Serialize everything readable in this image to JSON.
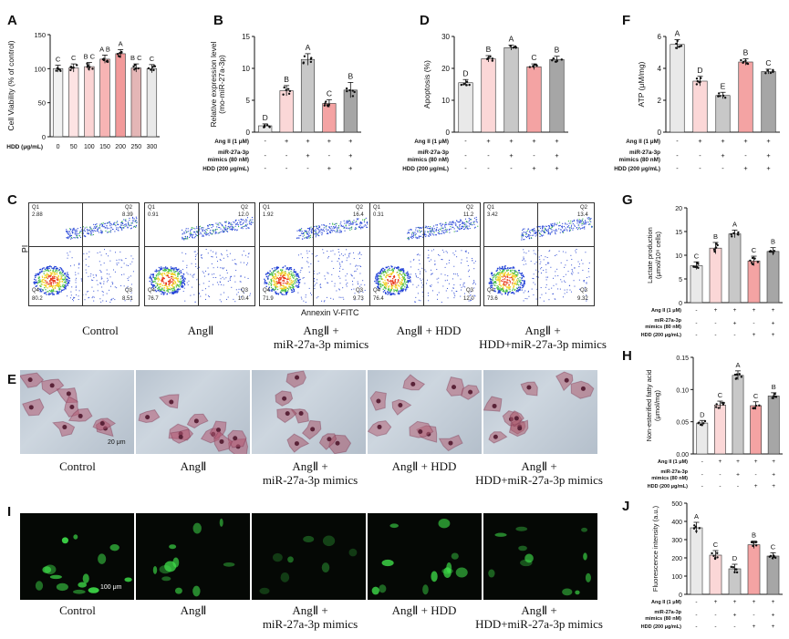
{
  "panels": {
    "A": {
      "letter": "A",
      "chart_data": {
        "type": "bar",
        "ylabel": "Cell Viability (% of control)",
        "xlabel_title": "HDD (μg/mL)",
        "categories": [
          "0",
          "50",
          "100",
          "150",
          "200",
          "250",
          "300"
        ],
        "values": [
          100,
          101,
          103,
          114,
          122,
          101,
          100
        ],
        "errors": [
          5,
          6,
          6,
          6,
          6,
          6,
          6
        ],
        "letters": [
          "C",
          "C",
          "B C",
          "A B",
          "A",
          "B C",
          "C"
        ],
        "colors": [
          "#f2f2f2",
          "#fde3e3",
          "#fbd4d4",
          "#f7b4b4",
          "#f29a9a",
          "#e4b6b6",
          "#e9e9e9"
        ],
        "ylim": [
          0,
          150
        ],
        "yticks": [
          "0",
          "50",
          "100",
          "150"
        ]
      }
    },
    "B": {
      "letter": "B",
      "chart_data": {
        "type": "bar",
        "ylabel": "Relative expression level (mo-miR-27a-3p)",
        "ylabel_line1": "Relative expression level",
        "ylabel_line2": "(mo-miR-27a-3p)",
        "values": [
          1.0,
          6.5,
          11.4,
          4.5,
          6.6
        ],
        "errors": [
          0.3,
          0.8,
          0.9,
          0.6,
          1.2
        ],
        "letters": [
          "D",
          "B",
          "A",
          "C",
          "B"
        ],
        "ylim": [
          0,
          15
        ],
        "yticks": [
          "0",
          "5",
          "10",
          "15"
        ]
      }
    },
    "D": {
      "letter": "D",
      "chart_data": {
        "type": "bar",
        "ylabel": "Apoptosis (%)",
        "values": [
          15.5,
          23,
          26.5,
          20.5,
          22.8
        ],
        "errors": [
          1,
          1,
          0.8,
          0.9,
          1
        ],
        "letters": [
          "D",
          "B",
          "A",
          "C",
          "B"
        ],
        "ylim": [
          0,
          30
        ],
        "yticks": [
          "0",
          "10",
          "20",
          "30"
        ]
      }
    },
    "F": {
      "letter": "F",
      "chart_data": {
        "type": "bar",
        "ylabel": "ATP (μM/mg)",
        "values": [
          5.5,
          3.2,
          2.3,
          4.4,
          3.8
        ],
        "errors": [
          0.3,
          0.3,
          0.2,
          0.2,
          0.15
        ],
        "letters": [
          "A",
          "D",
          "E",
          "B",
          "C"
        ],
        "ylim": [
          0,
          6
        ],
        "yticks": [
          "0",
          "2",
          "4",
          "6"
        ]
      }
    },
    "G": {
      "letter": "G",
      "chart_data": {
        "type": "bar",
        "ylabel": "Lactate production (μmol/10⁶ cells)",
        "ylabel_line1": "Lactate production",
        "ylabel_line2": "(μmol/10⁶ cells)",
        "values": [
          7.8,
          11.5,
          14.5,
          8.8,
          10.8
        ],
        "errors": [
          0.8,
          1.2,
          0.8,
          1,
          0.8
        ],
        "letters": [
          "C",
          "B",
          "A",
          "C",
          "B"
        ],
        "ylim": [
          0,
          20
        ],
        "yticks": [
          "0",
          "5",
          "10",
          "15",
          "20"
        ]
      }
    },
    "H": {
      "letter": "H",
      "chart_data": {
        "type": "bar",
        "ylabel": "Non-esterified fatty acid (μmol/mg)",
        "ylabel_line1": "Non-esterified fatty acid",
        "ylabel_line2": "(μmol/mg)",
        "values": [
          0.048,
          0.076,
          0.122,
          0.075,
          0.09
        ],
        "errors": [
          0.004,
          0.006,
          0.007,
          0.006,
          0.005
        ],
        "letters": [
          "D",
          "C",
          "A",
          "C",
          "B"
        ],
        "ylim": [
          0,
          0.15
        ],
        "yticks": [
          "0.00",
          "0.05",
          "0.10",
          "0.15"
        ]
      }
    },
    "J": {
      "letter": "J",
      "chart_data": {
        "type": "bar",
        "ylabel": "Fluorescence intensity (a.u.)",
        "values": [
          365,
          215,
          140,
          272,
          210
        ],
        "errors": [
          30,
          25,
          25,
          20,
          18
        ],
        "letters": [
          "A",
          "C",
          "D",
          "B",
          "C"
        ],
        "ylim": [
          0,
          500
        ],
        "yticks": [
          "0",
          "100",
          "200",
          "300",
          "400",
          "500"
        ]
      }
    },
    "C": {
      "letter": "C",
      "ylabel": "PI",
      "xlabel": "Annexin V-FITC",
      "plots": [
        {
          "q1": "Q1",
          "q1v": "2.88",
          "q2": "Q2",
          "q2v": "8.39",
          "q3": "Q3",
          "q3v": "8.51",
          "q4": "Q4",
          "q4v": "80.2"
        },
        {
          "q1": "Q1",
          "q1v": "0.91",
          "q2": "Q2",
          "q2v": "12.0",
          "q3": "Q3",
          "q3v": "10.4",
          "q4": "Q4",
          "q4v": "76.7"
        },
        {
          "q1": "Q1",
          "q1v": "1.92",
          "q2": "Q2",
          "q2v": "16.4",
          "q3": "Q3",
          "q3v": "9.73",
          "q4": "Q4",
          "q4v": "71.9"
        },
        {
          "q1": "Q1",
          "q1v": "0.31",
          "q2": "Q2",
          "q2v": "11.2",
          "q3": "Q3",
          "q3v": "12.0",
          "q4": "Q4",
          "q4v": "76.4"
        },
        {
          "q1": "Q1",
          "q1v": "3.42",
          "q2": "Q2",
          "q2v": "13.4",
          "q3": "Q3",
          "q3v": "9.32",
          "q4": "Q4",
          "q4v": "73.6"
        }
      ]
    },
    "E": {
      "letter": "E",
      "scale": "20 μm"
    },
    "I": {
      "letter": "I",
      "scale": "100 μm"
    }
  },
  "groups": {
    "control": "Control",
    "angii": "AngⅡ",
    "mimics_l1": "AngⅡ +",
    "mimics_l2": "miR-27a-3p mimics",
    "hdd": "AngⅡ + HDD",
    "combo_l1": "AngⅡ +",
    "combo_l2": "HDD+miR-27a-3p mimics"
  },
  "treatment": {
    "angii": "Ang II (1 μM)",
    "mimics_l1": "miR-27a-3p",
    "mimics_l2": "mimics (80 nM)",
    "hdd": "HDD (200 μg/mL)",
    "angii_row": [
      "-",
      "+",
      "+",
      "+",
      "+"
    ],
    "mimics_row": [
      "-",
      "-",
      "+",
      "-",
      "+"
    ],
    "hdd_row": [
      "-",
      "-",
      "-",
      "+",
      "+"
    ]
  },
  "bar_colors": [
    "#e9e9e9",
    "#fbd7d7",
    "#c8c8c8",
    "#f4a3a3",
    "#a6a6a6"
  ]
}
